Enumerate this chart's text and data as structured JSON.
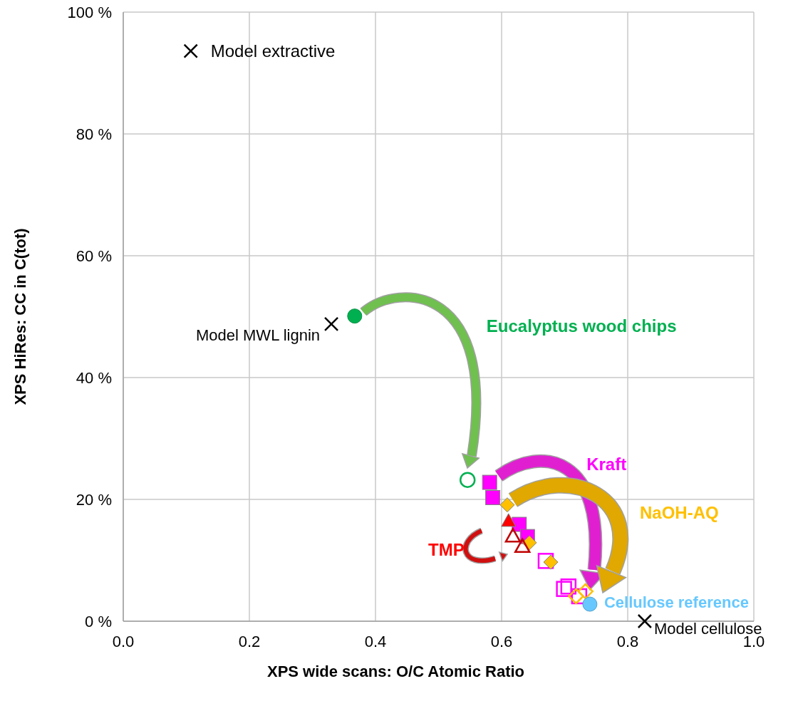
{
  "chart_data": {
    "type": "scatter",
    "xlabel": "XPS wide scans: O/C Atomic Ratio",
    "ylabel": "XPS HiRes: CC in C(tot)",
    "xlim": [
      0,
      1
    ],
    "ylim": [
      0,
      100
    ],
    "xticks": [
      {
        "value": 0,
        "label": "0.0"
      },
      {
        "value": 0.2,
        "label": "0.2"
      },
      {
        "value": 0.4,
        "label": "0.4"
      },
      {
        "value": 0.6,
        "label": "0.6"
      },
      {
        "value": 0.8,
        "label": "0.8"
      },
      {
        "value": 1,
        "label": "1.0"
      }
    ],
    "yticks": [
      {
        "value": 0,
        "label": "0 %"
      },
      {
        "value": 20,
        "label": "20 %"
      },
      {
        "value": 40,
        "label": "40 %"
      },
      {
        "value": 60,
        "label": "60 %"
      },
      {
        "value": 80,
        "label": "80 %"
      },
      {
        "value": 100,
        "label": "100 %"
      }
    ],
    "grid": true,
    "series": [
      {
        "name": "Model extractive",
        "color": "#000000",
        "marker": "cross",
        "x": [
          0.107
        ],
        "values": [
          93.6
        ]
      },
      {
        "name": "Model MWL lignin",
        "color": "#000000",
        "marker": "cross",
        "x": [
          0.33
        ],
        "values": [
          48.8
        ]
      },
      {
        "name": "Model cellulose",
        "color": "#000000",
        "marker": "cross",
        "x": [
          0.827
        ],
        "values": [
          0
        ]
      },
      {
        "name": "Eucalyptus wood chips",
        "color": "#00b050",
        "marker": "circle",
        "x": [
          0.367
        ],
        "values": [
          50.1
        ]
      },
      {
        "color": "#00b050",
        "marker": "circle",
        "x": [
          0.546
        ],
        "values": [
          23.2
        ]
      },
      {
        "name": "Kraft",
        "color": "#ff00ff",
        "marker": "square",
        "x": [
          0.581,
          0.586,
          0.628,
          0.641
        ],
        "values": [
          22.8,
          20.3,
          15.9,
          13.9
        ]
      },
      {
        "color": "#ff00ff",
        "marker": "square",
        "x": [
          0.67,
          0.699,
          0.706,
          0.723
        ],
        "values": [
          9.9,
          5.3,
          5.7,
          4.1
        ]
      },
      {
        "name": "NaOH-AQ",
        "color": "#ffc000",
        "marker": "diamond",
        "x": [
          0.609,
          0.644,
          0.678
        ],
        "values": [
          19.1,
          12.9,
          9.7
        ]
      },
      {
        "color": "#ffc000",
        "marker": "diamond",
        "x": [
          0.718,
          0.733
        ],
        "values": [
          4.1,
          4.9
        ]
      },
      {
        "name": "TMP",
        "color": "#ff0000",
        "marker": "triangle",
        "x": [
          0.611
        ],
        "values": [
          16.5
        ]
      },
      {
        "color": "#c00000",
        "marker": "triangle",
        "x": [
          0.618,
          0.633
        ],
        "values": [
          14,
          12.3
        ]
      },
      {
        "name": "Cellulose reference",
        "color": "#66c8ff",
        "marker": "circle",
        "x": [
          0.74
        ],
        "values": [
          2.8
        ]
      }
    ]
  }
}
